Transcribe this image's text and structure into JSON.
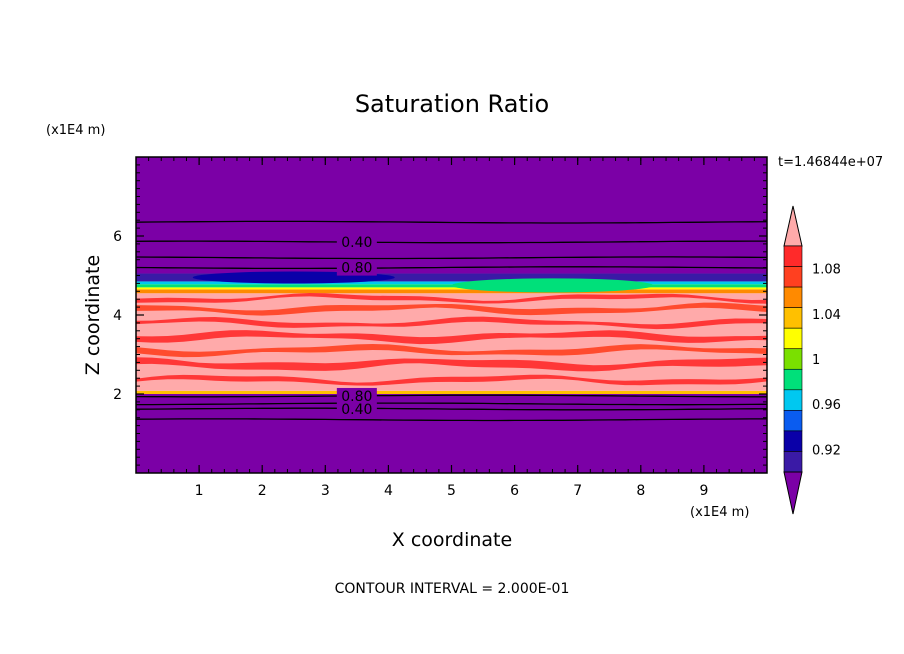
{
  "chart_data": {
    "type": "heatmap",
    "title": "Saturation Ratio",
    "xlabel": "X coordinate",
    "ylabel": "Z coordinate",
    "x_unit": "(x1E4 m)",
    "y_unit": "(x1E4 m)",
    "time_label": "t=1.46844e+07",
    "footer": "CONTOUR INTERVAL = 2.000E-01",
    "xlim": [
      0,
      10
    ],
    "ylim": [
      0,
      8
    ],
    "x_ticks": [
      "1",
      "2",
      "3",
      "4",
      "5",
      "6",
      "7",
      "8",
      "9"
    ],
    "y_ticks": [
      "2",
      "4",
      "6"
    ],
    "colorbar": {
      "colors": [
        "#7b00a6",
        "#3a1aa6",
        "#0a00a8",
        "#0a5cf0",
        "#00c8f0",
        "#00e07a",
        "#7ae000",
        "#ffff00",
        "#ffc000",
        "#ff8a00",
        "#ff4020",
        "#ff2a2a",
        "#ffaaaa"
      ],
      "tick_values": [
        0.92,
        0.96,
        1,
        1.04,
        1.08
      ],
      "tick_labels": [
        "0.92",
        "0.96",
        "1",
        "1.04",
        "1.08"
      ],
      "min": 0.9,
      "max": 1.1
    },
    "bands": [
      {
        "z_low": 0,
        "z_high": 2.0,
        "color": "#7b00a6"
      },
      {
        "z_low": 2.0,
        "z_high": 2.08,
        "color": "#ffc000"
      },
      {
        "z_low": 2.08,
        "z_high": 4.55,
        "color": "#ffaaaa"
      },
      {
        "z_low": 4.55,
        "z_high": 4.65,
        "color": "#ff8a00"
      },
      {
        "z_low": 4.65,
        "z_high": 4.7,
        "color": "#ffff00"
      },
      {
        "z_low": 4.7,
        "z_high": 4.78,
        "color": "#00e07a"
      },
      {
        "z_low": 4.78,
        "z_high": 4.85,
        "color": "#00c8f0"
      },
      {
        "z_low": 4.85,
        "z_high": 5.05,
        "color": "#3a1aa6"
      },
      {
        "z_low": 5.05,
        "z_high": 8.0,
        "color": "#7b00a6"
      }
    ],
    "contour_levels": [
      {
        "z": 6.35,
        "label": ""
      },
      {
        "z": 5.85,
        "label": "0.40",
        "label_x": 3.5
      },
      {
        "z": 5.45,
        "label": ""
      },
      {
        "z": 5.2,
        "label": "0.80",
        "label_x": 3.5
      },
      {
        "z": 1.95,
        "label": "0.80",
        "label_x": 3.5
      },
      {
        "z": 1.75,
        "label": ""
      },
      {
        "z": 1.62,
        "label": "0.40",
        "label_x": 3.5
      },
      {
        "z": 1.35,
        "label": ""
      }
    ]
  }
}
